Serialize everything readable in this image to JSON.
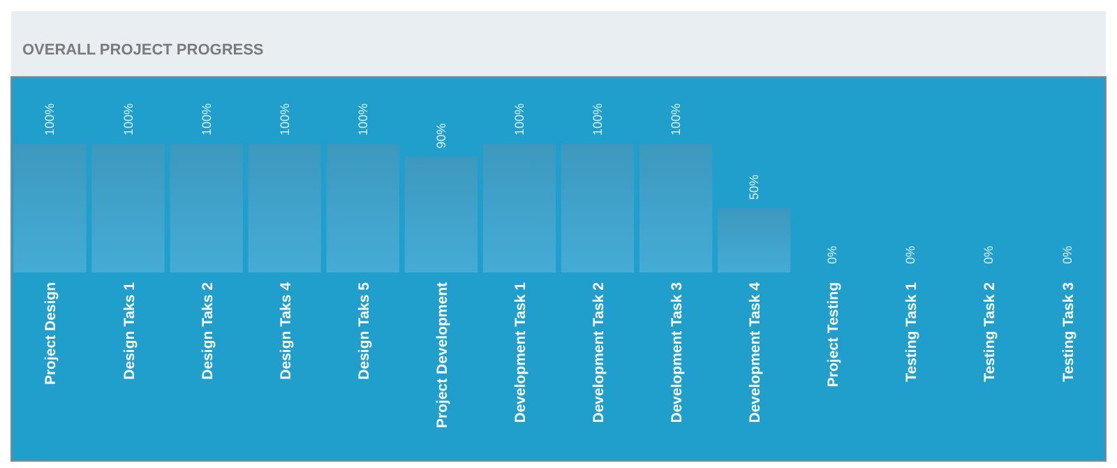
{
  "chart_data": {
    "type": "bar",
    "title": "OVERALL PROJECT PROGRESS",
    "categories": [
      "Project Design",
      "Design Taks 1",
      "Design Taks 2",
      "Design Taks 4",
      "Design Taks 5",
      "Project Development",
      "Development Task 1",
      "Development Task 2",
      "Development Task 3",
      "Development Task 4",
      "Project Testing",
      "Testing Task 1",
      "Testing Task 2",
      "Testing Task 3"
    ],
    "values": [
      100,
      100,
      100,
      100,
      100,
      90,
      100,
      100,
      100,
      50,
      0,
      0,
      0,
      0
    ],
    "value_labels": [
      "100%",
      "100%",
      "100%",
      "100%",
      "100%",
      "90%",
      "100%",
      "100%",
      "100%",
      "50%",
      "0%",
      "0%",
      "0%",
      "0%"
    ],
    "color": "#45acd6"
  }
}
